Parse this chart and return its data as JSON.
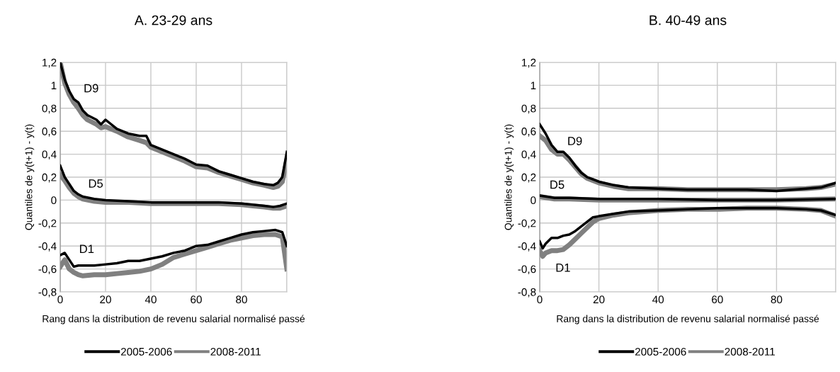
{
  "chart_data": [
    {
      "type": "line",
      "title": "A. 23-29 ans",
      "xlabel": "Rang dans la distribution de revenu salarial normalisé passé",
      "ylabel": "Quantiles de y(t+1) - y(t)",
      "xlim": [
        0,
        100
      ],
      "xticks": [
        0,
        20,
        40,
        60,
        80,
        {
          "value": 100,
          "label": null
        }
      ],
      "ylim": [
        -0.8,
        1.2
      ],
      "yticks": [
        {
          "value": -0.8,
          "label": "-0,8"
        },
        {
          "value": -0.6,
          "label": "-0,6"
        },
        {
          "value": -0.4,
          "label": "-0,4"
        },
        {
          "value": -0.2,
          "label": "-0,2"
        },
        0,
        {
          "value": 0.2,
          "label": "0,2"
        },
        {
          "value": 0.4,
          "label": "0,4"
        },
        {
          "value": 0.6,
          "label": "0,6"
        },
        {
          "value": 0.8,
          "label": "0,8"
        },
        1,
        {
          "value": 1.2,
          "label": "1,2"
        }
      ],
      "grid": true,
      "legend": "bottom",
      "annotations": [
        {
          "text": "D9",
          "x": 6,
          "y": 0.88
        },
        {
          "text": "D5",
          "x": 8,
          "y": 0.05
        },
        {
          "text": "D1",
          "x": 4,
          "y": -0.52
        }
      ],
      "series": [
        {
          "name": "2005-2006",
          "color": "#000000",
          "x": [
            0,
            2,
            4,
            6,
            8,
            10,
            12,
            14,
            16,
            18,
            20,
            25,
            30,
            35,
            38,
            40,
            45,
            50,
            55,
            60,
            65,
            70,
            75,
            80,
            85,
            90,
            94,
            96,
            98,
            100
          ],
          "values": [
            1.2,
            1.05,
            0.95,
            0.88,
            0.85,
            0.78,
            0.74,
            0.72,
            0.7,
            0.66,
            0.7,
            0.62,
            0.58,
            0.56,
            0.56,
            0.48,
            0.44,
            0.4,
            0.36,
            0.31,
            0.3,
            0.25,
            0.22,
            0.19,
            0.16,
            0.14,
            0.13,
            0.15,
            0.2,
            0.42
          ]
        },
        {
          "name": "2008-2011",
          "color": "#808080",
          "x": [
            0,
            2,
            4,
            6,
            8,
            10,
            12,
            14,
            16,
            18,
            20,
            25,
            30,
            35,
            38,
            40,
            45,
            50,
            55,
            60,
            65,
            70,
            75,
            80,
            85,
            90,
            94,
            96,
            98,
            100
          ],
          "values": [
            1.2,
            1.02,
            0.92,
            0.85,
            0.8,
            0.74,
            0.7,
            0.68,
            0.66,
            0.63,
            0.64,
            0.6,
            0.55,
            0.52,
            0.5,
            0.46,
            0.42,
            0.38,
            0.34,
            0.29,
            0.28,
            0.24,
            0.21,
            0.18,
            0.15,
            0.13,
            0.11,
            0.12,
            0.16,
            0.35
          ]
        },
        {
          "color": "#000000",
          "x": [
            0,
            2,
            4,
            6,
            8,
            10,
            15,
            20,
            30,
            40,
            50,
            60,
            70,
            80,
            85,
            90,
            94,
            97,
            100
          ],
          "values": [
            0.3,
            0.2,
            0.14,
            0.08,
            0.05,
            0.03,
            0.01,
            0.0,
            -0.01,
            -0.02,
            -0.02,
            -0.02,
            -0.02,
            -0.03,
            -0.04,
            -0.05,
            -0.06,
            -0.05,
            -0.03
          ]
        },
        {
          "color": "#808080",
          "x": [
            0,
            2,
            4,
            6,
            8,
            10,
            15,
            20,
            30,
            40,
            50,
            60,
            70,
            80,
            85,
            90,
            94,
            97,
            100
          ],
          "values": [
            0.22,
            0.17,
            0.11,
            0.06,
            0.03,
            0.01,
            -0.01,
            -0.02,
            -0.02,
            -0.03,
            -0.03,
            -0.03,
            -0.03,
            -0.04,
            -0.05,
            -0.06,
            -0.07,
            -0.07,
            -0.05
          ]
        },
        {
          "color": "#808080",
          "x": [
            0,
            2,
            4,
            6,
            8,
            10,
            15,
            20,
            25,
            30,
            35,
            40,
            45,
            50,
            55,
            60,
            65,
            70,
            75,
            80,
            85,
            90,
            95,
            98,
            100
          ],
          "values": [
            -0.58,
            -0.52,
            -0.6,
            -0.63,
            -0.65,
            -0.66,
            -0.65,
            -0.65,
            -0.64,
            -0.63,
            -0.62,
            -0.6,
            -0.56,
            -0.5,
            -0.47,
            -0.44,
            -0.41,
            -0.38,
            -0.35,
            -0.33,
            -0.31,
            -0.3,
            -0.3,
            -0.32,
            -0.6
          ]
        },
        {
          "color": "#000000",
          "x": [
            0,
            2,
            4,
            6,
            8,
            10,
            15,
            20,
            25,
            30,
            35,
            40,
            45,
            50,
            55,
            60,
            65,
            70,
            75,
            80,
            85,
            90,
            95,
            98,
            100
          ],
          "values": [
            -0.48,
            -0.46,
            -0.52,
            -0.58,
            -0.57,
            -0.57,
            -0.57,
            -0.56,
            -0.55,
            -0.53,
            -0.53,
            -0.51,
            -0.49,
            -0.46,
            -0.44,
            -0.4,
            -0.39,
            -0.36,
            -0.33,
            -0.3,
            -0.28,
            -0.27,
            -0.26,
            -0.28,
            -0.4
          ]
        }
      ]
    },
    {
      "type": "line",
      "title": "B. 40-49 ans",
      "xlabel": "Rang dans la distribution de revenu salarial normalisé passé",
      "ylabel": "Quantiles de y(t+1) - y(t)",
      "xlim": [
        0,
        100
      ],
      "xticks": [
        0,
        20,
        40,
        60,
        80,
        {
          "value": 100,
          "label": null
        }
      ],
      "ylim": [
        -0.8,
        1.2
      ],
      "yticks": [
        {
          "value": -0.8,
          "label": "-0,8"
        },
        {
          "value": -0.6,
          "label": "-0,6"
        },
        {
          "value": -0.4,
          "label": "-0,4"
        },
        {
          "value": -0.2,
          "label": "-0,2"
        },
        0,
        {
          "value": 0.2,
          "label": "0,2"
        },
        {
          "value": 0.4,
          "label": "0,4"
        },
        {
          "value": 0.6,
          "label": "0,6"
        },
        {
          "value": 0.8,
          "label": "0,8"
        },
        1,
        {
          "value": 1.2,
          "label": "1,2"
        }
      ],
      "grid": true,
      "legend": "bottom",
      "annotations": [
        {
          "text": "D9",
          "x": 6,
          "y": 0.42
        },
        {
          "text": "D5",
          "x": 0,
          "y": 0.04
        },
        {
          "text": "D1",
          "x": 2,
          "y": -0.46
        }
      ],
      "series": [
        {
          "name": "2005-2006",
          "color": "#000000",
          "x": [
            0,
            2,
            4,
            6,
            8,
            10,
            12,
            14,
            16,
            18,
            20,
            25,
            30,
            40,
            50,
            60,
            70,
            80,
            90,
            95,
            100
          ],
          "values": [
            0.66,
            0.58,
            0.48,
            0.42,
            0.42,
            0.37,
            0.3,
            0.24,
            0.2,
            0.18,
            0.16,
            0.13,
            0.11,
            0.1,
            0.09,
            0.09,
            0.09,
            0.08,
            0.1,
            0.11,
            0.15
          ]
        },
        {
          "name": "2008-2011",
          "color": "#808080",
          "x": [
            0,
            2,
            4,
            6,
            8,
            10,
            12,
            14,
            16,
            18,
            20,
            25,
            30,
            40,
            50,
            60,
            70,
            80,
            90,
            95,
            100
          ],
          "values": [
            0.56,
            0.52,
            0.44,
            0.4,
            0.4,
            0.35,
            0.29,
            0.23,
            0.19,
            0.17,
            0.15,
            0.12,
            0.1,
            0.1,
            0.09,
            0.09,
            0.09,
            0.09,
            0.1,
            0.11,
            0.14
          ]
        },
        {
          "color": "#000000",
          "x": [
            0,
            5,
            10,
            20,
            40,
            60,
            80,
            100
          ],
          "values": [
            0.04,
            0.02,
            0.02,
            0.01,
            0.01,
            0.0,
            0.0,
            0.01
          ]
        },
        {
          "color": "#808080",
          "x": [
            0,
            5,
            10,
            20,
            40,
            60,
            80,
            100
          ],
          "values": [
            0.03,
            0.01,
            0.01,
            0.0,
            0.0,
            0.0,
            0.0,
            0.01
          ]
        },
        {
          "color": "#808080",
          "x": [
            0,
            1,
            2,
            4,
            6,
            8,
            10,
            12,
            14,
            16,
            18,
            20,
            25,
            30,
            40,
            50,
            60,
            70,
            80,
            90,
            95,
            100
          ],
          "values": [
            -0.44,
            -0.49,
            -0.46,
            -0.44,
            -0.44,
            -0.43,
            -0.39,
            -0.34,
            -0.29,
            -0.24,
            -0.19,
            -0.16,
            -0.13,
            -0.11,
            -0.09,
            -0.08,
            -0.08,
            -0.07,
            -0.07,
            -0.08,
            -0.09,
            -0.14
          ]
        },
        {
          "color": "#000000",
          "x": [
            0,
            1,
            2,
            4,
            6,
            8,
            10,
            12,
            14,
            16,
            18,
            20,
            25,
            30,
            40,
            50,
            60,
            70,
            80,
            90,
            95,
            100
          ],
          "values": [
            -0.36,
            -0.42,
            -0.38,
            -0.33,
            -0.33,
            -0.31,
            -0.3,
            -0.27,
            -0.23,
            -0.19,
            -0.15,
            -0.14,
            -0.12,
            -0.1,
            -0.09,
            -0.08,
            -0.07,
            -0.07,
            -0.07,
            -0.08,
            -0.09,
            -0.13
          ]
        }
      ]
    }
  ]
}
